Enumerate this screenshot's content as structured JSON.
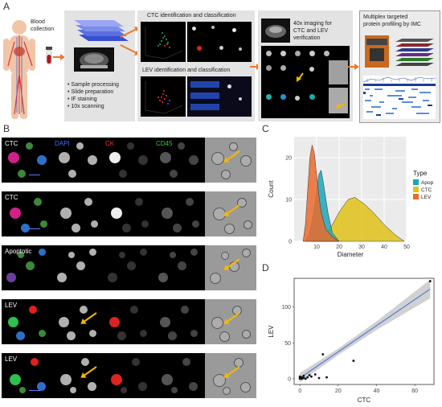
{
  "panel_a": {
    "letter": "A",
    "blood_collection": [
      "Blood",
      "collection"
    ],
    "steps": [
      "• Sample processing",
      "• Slide preparation",
      "• IF staining",
      "• 10x scanning"
    ],
    "ctc_title": "CTC identification and classification",
    "lev_title": "LEV identification and classification",
    "imaging_text": [
      "40x imaging for",
      "CTC and LEV",
      "verification"
    ],
    "imc_text": [
      "Multiplex targeted",
      "protein profiling by IMC"
    ]
  },
  "panel_b": {
    "letter": "B",
    "channel_headers": [
      "DAPI",
      "CK",
      "CD45"
    ],
    "channel_colors": [
      "#4a6cff",
      "#ff2a2a",
      "#3fc43f"
    ],
    "rows": [
      "CTC",
      "CTC",
      "Apoptotic",
      "LEV",
      "LEV"
    ]
  },
  "panel_c": {
    "letter": "C",
    "chart_data": {
      "type": "area",
      "xlabel": "Diameter",
      "ylabel": "Count",
      "xlim": [
        0,
        50
      ],
      "ylim": [
        0,
        25
      ],
      "xticks": [
        10,
        20,
        30,
        40,
        50
      ],
      "yticks": [
        0,
        10,
        20
      ],
      "legend_title": "Type",
      "legend_placement": "right",
      "series": [
        {
          "name": "Apop",
          "color": "#1aa7b8",
          "x": [
            5,
            7,
            9,
            11,
            12,
            13,
            15,
            17,
            20
          ],
          "y": [
            0,
            2,
            8,
            16,
            17,
            14,
            7,
            2,
            0
          ]
        },
        {
          "name": "CTC",
          "color": "#e0c21a",
          "x": [
            8,
            12,
            16,
            20,
            24,
            27,
            31,
            35,
            40,
            45,
            49
          ],
          "y": [
            0,
            1,
            3,
            7,
            10,
            10.5,
            9,
            7,
            4,
            1.5,
            0
          ]
        },
        {
          "name": "LEV",
          "color": "#ea6b2b",
          "x": [
            4,
            5,
            6,
            7,
            8,
            9,
            10,
            11,
            12,
            14,
            17,
            20
          ],
          "y": [
            0,
            4,
            12,
            20,
            23,
            21,
            16,
            11,
            7,
            3,
            1,
            0
          ]
        }
      ]
    }
  },
  "panel_d": {
    "letter": "D",
    "chart_data": {
      "type": "scatter",
      "xlabel": "CTC",
      "ylabel": "LEV",
      "xlim": [
        -3,
        70
      ],
      "ylim": [
        -8,
        140
      ],
      "xticks": [
        0,
        20,
        40,
        60
      ],
      "yticks": [
        0,
        50,
        100
      ],
      "points": [
        [
          0,
          0
        ],
        [
          0,
          1
        ],
        [
          1,
          0
        ],
        [
          1,
          2
        ],
        [
          2,
          1
        ],
        [
          0,
          3
        ],
        [
          3,
          0
        ],
        [
          2,
          4
        ],
        [
          4,
          2
        ],
        [
          5,
          5
        ],
        [
          6,
          3
        ],
        [
          8,
          6
        ],
        [
          10,
          1
        ],
        [
          14,
          2
        ],
        [
          12,
          34
        ],
        [
          28,
          25
        ],
        [
          68,
          136
        ]
      ],
      "trend": {
        "x": [
          0,
          68
        ],
        "y": [
          1,
          125
        ]
      },
      "band": {
        "x": [
          0,
          20,
          40,
          68
        ],
        "upper": [
          8,
          42,
          80,
          138
        ],
        "lower": [
          -5,
          33,
          68,
          112
        ]
      }
    }
  }
}
